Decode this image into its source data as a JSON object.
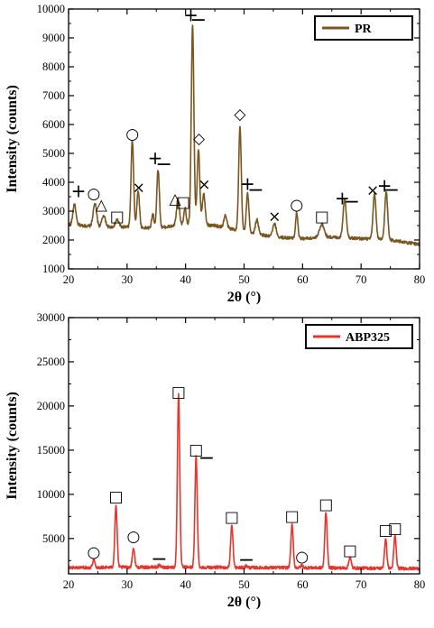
{
  "chart_data": [
    {
      "type": "line",
      "name": "top-panel",
      "xlabel": "2θ (°)",
      "ylabel": "Intensity (counts)",
      "xlim": [
        20,
        80
      ],
      "ylim": [
        1000,
        10000
      ],
      "xticks": [
        20,
        30,
        40,
        50,
        60,
        70,
        80
      ],
      "yticks": [
        1000,
        2000,
        3000,
        4000,
        5000,
        6000,
        7000,
        8000,
        9000,
        10000
      ],
      "legend": "top-right",
      "series": [
        {
          "name": "PR",
          "color": "#7a5620",
          "baseline": [
            [
              20,
              2550
            ],
            [
              25,
              2450
            ],
            [
              30,
              2450
            ],
            [
              35,
              2400
            ],
            [
              40,
              2550
            ],
            [
              45,
              2500
            ],
            [
              50,
              2300
            ],
            [
              55,
              2100
            ],
            [
              60,
              2050
            ],
            [
              65,
              2100
            ],
            [
              70,
              2050
            ],
            [
              75,
              2000
            ],
            [
              80,
              1850
            ]
          ],
          "peaks": [
            {
              "x": 21.0,
              "y": 3250,
              "w": 0.25
            },
            {
              "x": 24.5,
              "y": 3250,
              "w": 0.3
            },
            {
              "x": 26.0,
              "y": 2850,
              "w": 0.3
            },
            {
              "x": 28.3,
              "y": 2700,
              "w": 0.3
            },
            {
              "x": 30.9,
              "y": 5450,
              "w": 0.22
            },
            {
              "x": 31.9,
              "y": 3700,
              "w": 0.22
            },
            {
              "x": 34.4,
              "y": 2900,
              "w": 0.2
            },
            {
              "x": 35.3,
              "y": 4450,
              "w": 0.22
            },
            {
              "x": 38.7,
              "y": 3400,
              "w": 0.25
            },
            {
              "x": 39.9,
              "y": 3100,
              "w": 0.2
            },
            {
              "x": 41.2,
              "y": 9450,
              "w": 0.22
            },
            {
              "x": 42.2,
              "y": 5150,
              "w": 0.22
            },
            {
              "x": 43.1,
              "y": 3600,
              "w": 0.25
            },
            {
              "x": 46.8,
              "y": 2850,
              "w": 0.25
            },
            {
              "x": 49.3,
              "y": 5900,
              "w": 0.22
            },
            {
              "x": 50.6,
              "y": 3600,
              "w": 0.22
            },
            {
              "x": 52.2,
              "y": 2700,
              "w": 0.25
            },
            {
              "x": 55.2,
              "y": 2550,
              "w": 0.3
            },
            {
              "x": 59.0,
              "y": 2950,
              "w": 0.2
            },
            {
              "x": 63.3,
              "y": 2550,
              "w": 0.4
            },
            {
              "x": 67.2,
              "y": 3400,
              "w": 0.28
            },
            {
              "x": 72.3,
              "y": 3600,
              "w": 0.25
            },
            {
              "x": 74.3,
              "y": 3650,
              "w": 0.25
            }
          ]
        }
      ],
      "markers": [
        {
          "symbol": "+",
          "x": 21.7,
          "y": 3650
        },
        {
          "symbol": "○",
          "x": 24.3,
          "y": 3600
        },
        {
          "symbol": "△",
          "x": 25.6,
          "y": 3200
        },
        {
          "symbol": "□",
          "x": 28.3,
          "y": 2800
        },
        {
          "symbol": "○",
          "x": 30.9,
          "y": 5650
        },
        {
          "symbol": "×",
          "x": 32.0,
          "y": 3800
        },
        {
          "symbol": "+",
          "x": 34.8,
          "y": 4800
        },
        {
          "symbol": "−",
          "x": 36.3,
          "y": 4600
        },
        {
          "symbol": "△",
          "x": 38.2,
          "y": 3400
        },
        {
          "symbol": "□",
          "x": 39.6,
          "y": 3300
        },
        {
          "symbol": "+",
          "x": 40.9,
          "y": 9750
        },
        {
          "symbol": "−",
          "x": 42.2,
          "y": 9600
        },
        {
          "symbol": "◇",
          "x": 42.3,
          "y": 5500
        },
        {
          "symbol": "×",
          "x": 43.2,
          "y": 3900
        },
        {
          "symbol": "◇",
          "x": 49.3,
          "y": 6350
        },
        {
          "symbol": "+",
          "x": 50.6,
          "y": 3900
        },
        {
          "symbol": "−",
          "x": 52.0,
          "y": 3700
        },
        {
          "symbol": "×",
          "x": 55.2,
          "y": 2800
        },
        {
          "symbol": "○",
          "x": 59.0,
          "y": 3200
        },
        {
          "symbol": "□",
          "x": 63.3,
          "y": 2800
        },
        {
          "symbol": "+",
          "x": 66.8,
          "y": 3400
        },
        {
          "symbol": "−",
          "x": 68.4,
          "y": 3300
        },
        {
          "symbol": "×",
          "x": 72.0,
          "y": 3700
        },
        {
          "symbol": "+",
          "x": 74.0,
          "y": 3850
        },
        {
          "symbol": "−",
          "x": 75.2,
          "y": 3700
        }
      ]
    },
    {
      "type": "line",
      "name": "bottom-panel",
      "xlabel": "2θ (°)",
      "ylabel": "Intensity (counts)",
      "xlim": [
        20,
        80
      ],
      "ylim": [
        1000,
        30000
      ],
      "xticks": [
        20,
        30,
        40,
        50,
        60,
        70,
        80
      ],
      "yticks": [
        5000,
        10000,
        15000,
        20000,
        25000,
        30000
      ],
      "legend": "top-right",
      "series": [
        {
          "name": "ABP325",
          "color": "#e8342a",
          "baseline": [
            [
              20,
              1700
            ],
            [
              30,
              1750
            ],
            [
              40,
              1750
            ],
            [
              50,
              1700
            ],
            [
              60,
              1700
            ],
            [
              70,
              1650
            ],
            [
              80,
              1600
            ]
          ],
          "peaks": [
            {
              "x": 24.3,
              "y": 2600,
              "w": 0.2
            },
            {
              "x": 28.1,
              "y": 8700,
              "w": 0.2
            },
            {
              "x": 31.1,
              "y": 3900,
              "w": 0.2
            },
            {
              "x": 35.5,
              "y": 1950,
              "w": 0.2
            },
            {
              "x": 38.8,
              "y": 21300,
              "w": 0.2
            },
            {
              "x": 41.8,
              "y": 14300,
              "w": 0.2
            },
            {
              "x": 47.9,
              "y": 6500,
              "w": 0.2
            },
            {
              "x": 50.4,
              "y": 1900,
              "w": 0.2
            },
            {
              "x": 58.2,
              "y": 6500,
              "w": 0.2
            },
            {
              "x": 59.9,
              "y": 1950,
              "w": 0.2
            },
            {
              "x": 64.0,
              "y": 8000,
              "w": 0.2
            },
            {
              "x": 68.1,
              "y": 2900,
              "w": 0.2
            },
            {
              "x": 74.2,
              "y": 4900,
              "w": 0.2
            },
            {
              "x": 75.8,
              "y": 5300,
              "w": 0.2
            }
          ]
        }
      ],
      "markers": [
        {
          "symbol": "○",
          "x": 24.3,
          "y": 3400
        },
        {
          "symbol": "□",
          "x": 28.1,
          "y": 9700
        },
        {
          "symbol": "○",
          "x": 31.1,
          "y": 5200
        },
        {
          "symbol": "−",
          "x": 35.5,
          "y": 2600
        },
        {
          "symbol": "□",
          "x": 38.8,
          "y": 21500
        },
        {
          "symbol": "□",
          "x": 41.8,
          "y": 15000
        },
        {
          "symbol": "−",
          "x": 43.6,
          "y": 14000
        },
        {
          "symbol": "□",
          "x": 47.9,
          "y": 7400
        },
        {
          "symbol": "−",
          "x": 50.4,
          "y": 2500
        },
        {
          "symbol": "□",
          "x": 58.2,
          "y": 7500
        },
        {
          "symbol": "○",
          "x": 59.9,
          "y": 2900
        },
        {
          "symbol": "□",
          "x": 64.0,
          "y": 8800
        },
        {
          "symbol": "□",
          "x": 68.1,
          "y": 3600
        },
        {
          "symbol": "□",
          "x": 74.2,
          "y": 5900
        },
        {
          "symbol": "□",
          "x": 75.8,
          "y": 6100
        }
      ]
    }
  ]
}
